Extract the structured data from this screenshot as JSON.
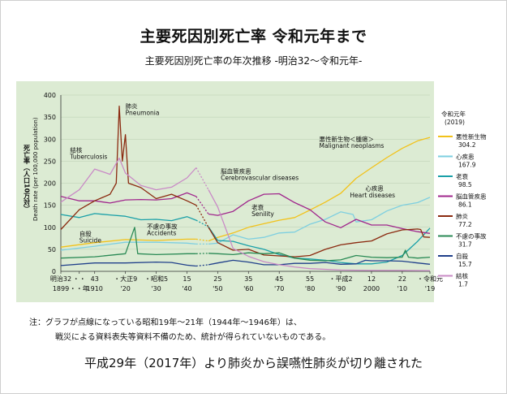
{
  "title": "主要死因別死亡率 令和元年まで",
  "subtitle": "主要死因別死亡率の年次推移 -明治32～令和元年-",
  "note_line1": "注：グラフが点線になっている昭和19年～21年（1944年～1946年）は、",
  "note_line2": "戦災による資料表失等資料不備のため、統計が得られていないものである。",
  "caption": "平成29年（2017年）より肺炎から誤嚥性肺炎が切り離された",
  "chart_data": {
    "type": "line",
    "ylabel_jp": "死亡率（人口10万対）",
    "ylabel_en": "Death rate (per 100,000 population)",
    "ylim": [
      0,
      400
    ],
    "yticks": [
      0,
      50,
      100,
      150,
      200,
      250,
      300,
      350,
      400
    ],
    "xlim": [
      1899,
      2019
    ],
    "xticks": [
      {
        "year": 1899,
        "top": "明治32",
        "bottom": "1899"
      },
      {
        "year": 1905,
        "top": "・・",
        "bottom": "・・年"
      },
      {
        "year": 1910,
        "top": "43",
        "bottom": "1910"
      },
      {
        "year": 1920,
        "top": "・大正9",
        "bottom": "'20"
      },
      {
        "year": 1930,
        "top": "・昭和5",
        "bottom": "'30"
      },
      {
        "year": 1940,
        "top": "15",
        "bottom": "'40"
      },
      {
        "year": 1950,
        "top": "25",
        "bottom": "'50"
      },
      {
        "year": 1960,
        "top": "35",
        "bottom": "'60"
      },
      {
        "year": 1970,
        "top": "45",
        "bottom": "'70"
      },
      {
        "year": 1980,
        "top": "55",
        "bottom": "'80"
      },
      {
        "year": 1990,
        "top": "・平成2",
        "bottom": "'90"
      },
      {
        "year": 2000,
        "top": "12",
        "bottom": "2000"
      },
      {
        "year": 2010,
        "top": "22",
        "bottom": "'10"
      },
      {
        "year": 2019,
        "top": "・令和元",
        "bottom": "'19"
      }
    ],
    "legend_title": [
      "令和元年",
      "(2019)"
    ],
    "legend_position": "right",
    "gap_years": [
      1944,
      1946
    ],
    "series": [
      {
        "name": "悪性新生物",
        "value_label": "304.2",
        "color": "#f2c21a",
        "points": [
          [
            1899,
            55
          ],
          [
            1910,
            65
          ],
          [
            1920,
            72
          ],
          [
            1930,
            70
          ],
          [
            1940,
            73
          ],
          [
            1943,
            73
          ],
          [
            1947,
            69
          ],
          [
            1950,
            77
          ],
          [
            1955,
            87
          ],
          [
            1960,
            100
          ],
          [
            1965,
            108
          ],
          [
            1970,
            116
          ],
          [
            1975,
            122
          ],
          [
            1980,
            139
          ],
          [
            1985,
            157
          ],
          [
            1990,
            177
          ],
          [
            1995,
            211
          ],
          [
            2000,
            235
          ],
          [
            2005,
            258
          ],
          [
            2010,
            279
          ],
          [
            2015,
            296
          ],
          [
            2019,
            304
          ]
        ]
      },
      {
        "name": "心疾患",
        "value_label": "167.9",
        "color": "#7ecfe0",
        "points": [
          [
            1899,
            48
          ],
          [
            1910,
            57
          ],
          [
            1920,
            66
          ],
          [
            1930,
            66
          ],
          [
            1940,
            64
          ],
          [
            1943,
            62
          ],
          [
            1947,
            62
          ],
          [
            1950,
            64
          ],
          [
            1955,
            83
          ],
          [
            1960,
            73
          ],
          [
            1965,
            77
          ],
          [
            1970,
            87
          ],
          [
            1975,
            89
          ],
          [
            1980,
            107
          ],
          [
            1985,
            118
          ],
          [
            1990,
            135
          ],
          [
            1994,
            129
          ],
          [
            1995,
            112
          ],
          [
            2000,
            117
          ],
          [
            2005,
            137
          ],
          [
            2010,
            150
          ],
          [
            2015,
            156
          ],
          [
            2019,
            168
          ]
        ]
      },
      {
        "name": "老衰",
        "value_label": "98.5",
        "color": "#1aa0a8",
        "points": [
          [
            1899,
            129
          ],
          [
            1905,
            122
          ],
          [
            1910,
            131
          ],
          [
            1915,
            128
          ],
          [
            1920,
            125
          ],
          [
            1925,
            117
          ],
          [
            1930,
            118
          ],
          [
            1935,
            115
          ],
          [
            1940,
            124
          ],
          [
            1943,
            116
          ],
          [
            1947,
            101
          ],
          [
            1950,
            70
          ],
          [
            1955,
            68
          ],
          [
            1960,
            58
          ],
          [
            1965,
            50
          ],
          [
            1970,
            38
          ],
          [
            1975,
            30
          ],
          [
            1980,
            28
          ],
          [
            1985,
            25
          ],
          [
            1990,
            20
          ],
          [
            1995,
            17
          ],
          [
            2000,
            17
          ],
          [
            2005,
            21
          ],
          [
            2010,
            36
          ],
          [
            2015,
            68
          ],
          [
            2019,
            98
          ]
        ]
      },
      {
        "name": "脳血管疾患",
        "value_label": "86.1",
        "color": "#a0268c",
        "points": [
          [
            1899,
            170
          ],
          [
            1905,
            160
          ],
          [
            1910,
            160
          ],
          [
            1915,
            155
          ],
          [
            1920,
            162
          ],
          [
            1925,
            163
          ],
          [
            1930,
            162
          ],
          [
            1935,
            165
          ],
          [
            1940,
            178
          ],
          [
            1943,
            170
          ],
          [
            1947,
            130
          ],
          [
            1950,
            127
          ],
          [
            1955,
            136
          ],
          [
            1960,
            160
          ],
          [
            1965,
            175
          ],
          [
            1970,
            176
          ],
          [
            1975,
            156
          ],
          [
            1980,
            140
          ],
          [
            1985,
            112
          ],
          [
            1990,
            99
          ],
          [
            1995,
            118
          ],
          [
            2000,
            105
          ],
          [
            2005,
            105
          ],
          [
            2010,
            97
          ],
          [
            2015,
            90
          ],
          [
            2019,
            86
          ]
        ]
      },
      {
        "name": "肺炎",
        "value_label": "77.2",
        "color": "#8b2a10",
        "points": [
          [
            1899,
            95
          ],
          [
            1905,
            140
          ],
          [
            1910,
            160
          ],
          [
            1915,
            175
          ],
          [
            1917,
            200
          ],
          [
            1918,
            375
          ],
          [
            1919,
            250
          ],
          [
            1920,
            310
          ],
          [
            1921,
            200
          ],
          [
            1925,
            190
          ],
          [
            1930,
            165
          ],
          [
            1935,
            175
          ],
          [
            1940,
            160
          ],
          [
            1943,
            150
          ],
          [
            1947,
            100
          ],
          [
            1950,
            65
          ],
          [
            1955,
            48
          ],
          [
            1960,
            50
          ],
          [
            1965,
            37
          ],
          [
            1970,
            35
          ],
          [
            1975,
            33
          ],
          [
            1980,
            36
          ],
          [
            1985,
            50
          ],
          [
            1990,
            60
          ],
          [
            1995,
            65
          ],
          [
            2000,
            69
          ],
          [
            2005,
            85
          ],
          [
            2010,
            94
          ],
          [
            2015,
            96
          ],
          [
            2016,
            95
          ],
          [
            2017,
            78
          ],
          [
            2019,
            77
          ]
        ]
      },
      {
        "name": "不慮の事故",
        "value_label": "31.7",
        "color": "#2a8a55",
        "points": [
          [
            1899,
            30
          ],
          [
            1910,
            33
          ],
          [
            1920,
            40
          ],
          [
            1923,
            100
          ],
          [
            1924,
            40
          ],
          [
            1930,
            38
          ],
          [
            1940,
            40
          ],
          [
            1943,
            40
          ],
          [
            1947,
            41
          ],
          [
            1950,
            40
          ],
          [
            1955,
            38
          ],
          [
            1960,
            42
          ],
          [
            1965,
            40
          ],
          [
            1970,
            42
          ],
          [
            1975,
            30
          ],
          [
            1980,
            25
          ],
          [
            1985,
            24
          ],
          [
            1990,
            26
          ],
          [
            1995,
            36
          ],
          [
            2000,
            32
          ],
          [
            2005,
            31
          ],
          [
            2010,
            32
          ],
          [
            2011,
            48
          ],
          [
            2012,
            32
          ],
          [
            2015,
            30
          ],
          [
            2019,
            32
          ]
        ]
      },
      {
        "name": "自殺",
        "value_label": "15.7",
        "color": "#1f3f8a",
        "points": [
          [
            1899,
            13
          ],
          [
            1910,
            19
          ],
          [
            1920,
            19
          ],
          [
            1930,
            21
          ],
          [
            1935,
            20
          ],
          [
            1940,
            14
          ],
          [
            1943,
            12
          ],
          [
            1947,
            15
          ],
          [
            1950,
            19
          ],
          [
            1955,
            25
          ],
          [
            1960,
            21
          ],
          [
            1965,
            15
          ],
          [
            1970,
            15
          ],
          [
            1975,
            18
          ],
          [
            1980,
            18
          ],
          [
            1985,
            20
          ],
          [
            1990,
            16
          ],
          [
            1995,
            17
          ],
          [
            1998,
            25
          ],
          [
            2000,
            24
          ],
          [
            2005,
            24
          ],
          [
            2010,
            23
          ],
          [
            2015,
            19
          ],
          [
            2019,
            16
          ]
        ]
      },
      {
        "name": "結核",
        "value_label": "1.7",
        "color": "#c98ac6",
        "points": [
          [
            1899,
            157
          ],
          [
            1905,
            185
          ],
          [
            1910,
            232
          ],
          [
            1915,
            220
          ],
          [
            1918,
            257
          ],
          [
            1920,
            223
          ],
          [
            1925,
            195
          ],
          [
            1930,
            185
          ],
          [
            1935,
            191
          ],
          [
            1940,
            212
          ],
          [
            1943,
            235
          ],
          [
            1947,
            185
          ],
          [
            1950,
            146
          ],
          [
            1955,
            52
          ],
          [
            1960,
            34
          ],
          [
            1965,
            22
          ],
          [
            1970,
            15
          ],
          [
            1975,
            10
          ],
          [
            1980,
            6
          ],
          [
            1990,
            3
          ],
          [
            2000,
            2
          ],
          [
            2010,
            2
          ],
          [
            2019,
            1.7
          ]
        ]
      }
    ],
    "annotations": [
      {
        "text": "肺炎",
        "x": 1920,
        "y": 370
      },
      {
        "text": "Pneumonia",
        "x": 1920,
        "y": 355
      },
      {
        "text": "結核",
        "x": 1902,
        "y": 270
      },
      {
        "text": "Tuberculosis",
        "x": 1902,
        "y": 255
      },
      {
        "text": "不慮の事故",
        "x": 1927,
        "y": 97
      },
      {
        "text": "Accidents",
        "x": 1927,
        "y": 82
      },
      {
        "text": "自殺",
        "x": 1905,
        "y": 80
      },
      {
        "text": "Suicide",
        "x": 1905,
        "y": 65
      },
      {
        "text": "脳血管疾患",
        "x": 1951,
        "y": 222
      },
      {
        "text": "Cerebrovascular diseases",
        "x": 1951,
        "y": 207
      },
      {
        "text": "老衰",
        "x": 1961,
        "y": 140
      },
      {
        "text": "Senility",
        "x": 1961,
        "y": 125
      },
      {
        "text": "悪性新生物＜腫瘍＞",
        "x": 1983,
        "y": 295
      },
      {
        "text": "Malignant neoplasms",
        "x": 1983,
        "y": 280
      },
      {
        "text": "心疾患",
        "x": 1998,
        "y": 183
      },
      {
        "text": "Heart diseases",
        "x": 1993,
        "y": 168
      }
    ]
  }
}
